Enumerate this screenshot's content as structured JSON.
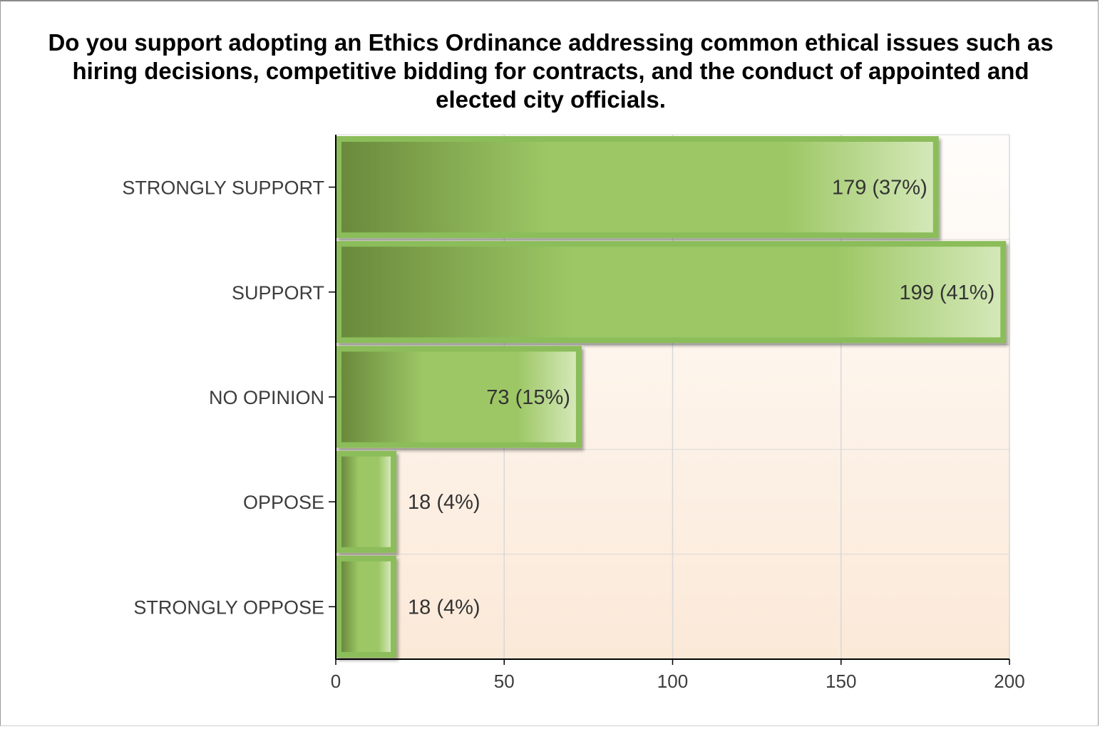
{
  "chart_data": {
    "type": "bar",
    "orientation": "horizontal",
    "title": "Do you support adopting an Ethics Ordinance addressing common ethical issues such as hiring decisions, competitive bidding for contracts, and the conduct of appointed and elected city officials.",
    "categories": [
      "STRONGLY SUPPORT",
      "SUPPORT",
      "NO OPINION",
      "OPPOSE",
      "STRONGLY OPPOSE"
    ],
    "values": [
      179,
      199,
      73,
      18,
      18
    ],
    "data_labels": [
      "179 (37%)",
      "199 (41%)",
      "73 (15%)",
      "18 (4%)",
      "18 (4%)"
    ],
    "xlim": [
      0,
      200
    ],
    "x_ticks": [
      "0",
      "50",
      "100",
      "150",
      "200"
    ],
    "xlabel": "",
    "ylabel": "",
    "grid": true,
    "legend": "none",
    "colors": {
      "bar_dark": "#6a8a3c",
      "bar_mid": "#9dc765",
      "bar_light": "#d4e8b8",
      "bar_border": "#8bbd5a",
      "bg_top": "#fffdfb",
      "bg_bottom": "#fbe9d8",
      "grid": "#d8d8d8",
      "axis": "#000000"
    }
  }
}
